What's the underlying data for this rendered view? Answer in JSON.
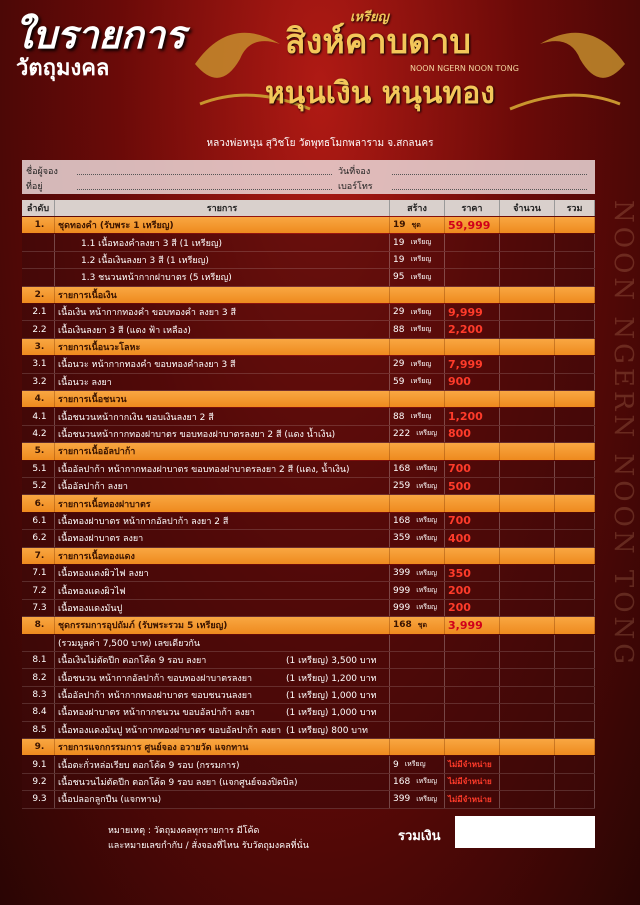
{
  "header": {
    "title": "ใบรายการ",
    "subtitle": "วัตถุมงคล",
    "logo_top": "เหรียญ",
    "logo_main": "สิงห์คาบดาบ",
    "logo_en": "NOON NGERN  NOON TONG",
    "logo_bottom": "หนุนเงิน หนุนทอง",
    "temple": "หลวงพ่อหนุน สุวิชโย วัดพุทธโมกพลาราม จ.สกลนคร",
    "side": "NOON NGERN NOON TONG"
  },
  "form": {
    "name": "ชื่อผู้จอง",
    "address": "ที่อยู่",
    "date": "วันที่จอง",
    "phone": "เบอร์โทร"
  },
  "table": {
    "headers": [
      "ลำดับ",
      "รายการ",
      "สร้าง",
      "ราคา",
      "จำนวน",
      "รวม"
    ],
    "rows": [
      {
        "kind": "section",
        "no": "1.",
        "item": "ชุดทองคำ (รับพระ 1 เหรียญ)",
        "qty": 19,
        "unit": "ชุด",
        "price": "59,999"
      },
      {
        "kind": "sub",
        "item": "1.1  เนื้อทองคำลงยา 3 สี   (1 เหรียญ)",
        "qty": 19,
        "unit": "เหรียญ"
      },
      {
        "kind": "sub",
        "item": "1.2  เนื้อเงินลงยา 3 สี   (1 เหรียญ)",
        "qty": 19,
        "unit": "เหรียญ"
      },
      {
        "kind": "sub",
        "item": "1.3  ชนวนหน้ากากฝาบาตร   (5 เหรียญ)",
        "qty": 95,
        "unit": "เหรียญ"
      },
      {
        "kind": "section",
        "no": "2.",
        "item": "รายการเนื้อเงิน"
      },
      {
        "kind": "item",
        "no": "2.1",
        "item": "เนื้อเงิน หน้ากากทองคำ ขอบทองคำ ลงยา 3 สี",
        "qty": 29,
        "unit": "เหรียญ",
        "price": "9,999"
      },
      {
        "kind": "item",
        "no": "2.2",
        "item": "เนื้อเงินลงยา 3 สี (แดง ฟ้า เหลือง)",
        "qty": 88,
        "unit": "เหรียญ",
        "price": "2,200"
      },
      {
        "kind": "section",
        "no": "3.",
        "item": "รายการเนื้อนวะโลหะ"
      },
      {
        "kind": "item",
        "no": "3.1",
        "item": "เนื้อนวะ หน้ากากทองคำ ขอบทองคำลงยา 3 สี",
        "qty": 29,
        "unit": "เหรียญ",
        "price": "7,999"
      },
      {
        "kind": "item",
        "no": "3.2",
        "item": "เนื้อนวะ ลงยา",
        "qty": 59,
        "unit": "เหรียญ",
        "price": "900"
      },
      {
        "kind": "section",
        "no": "4.",
        "item": "รายการเนื้อชนวน"
      },
      {
        "kind": "item",
        "no": "4.1",
        "item": "เนื้อชนวนหน้ากากเงิน ขอบเงินลงยา 2 สี",
        "qty": 88,
        "unit": "เหรียญ",
        "price": "1,200"
      },
      {
        "kind": "item",
        "no": "4.2",
        "item": "เนื้อชนวนหน้ากากทองฝาบาตร ขอบทองฝาบาตรลงยา 2 สี (แดง น้ำเงิน)",
        "qty": 222,
        "unit": "เหรียญ",
        "price": "800"
      },
      {
        "kind": "section",
        "no": "5.",
        "item": "รายการเนื้ออัลปาก้า"
      },
      {
        "kind": "item",
        "no": "5.1",
        "item": "เนื้ออัลปาก้า หน้ากากทองฝาบาตร ขอบทองฝาบาตรลงยา 2 สี (แดง, น้ำเงิน)",
        "qty": 168,
        "unit": "เหรียญ",
        "price": "700"
      },
      {
        "kind": "item",
        "no": "5.2",
        "item": "เนื้ออัลปาก้า ลงยา",
        "qty": 259,
        "unit": "เหรียญ",
        "price": "500"
      },
      {
        "kind": "section",
        "no": "6.",
        "item": "รายการเนื้อทองฝาบาตร"
      },
      {
        "kind": "item",
        "no": "6.1",
        "item": "เนื้อทองฝาบาตร หน้ากากอัลปาก้า ลงยา 2 สี",
        "qty": 168,
        "unit": "เหรียญ",
        "price": "700"
      },
      {
        "kind": "item",
        "no": "6.2",
        "item": "เนื้อทองฝาบาตร ลงยา",
        "qty": 359,
        "unit": "เหรียญ",
        "price": "400"
      },
      {
        "kind": "section",
        "no": "7.",
        "item": "รายการเนื้อทองแดง"
      },
      {
        "kind": "item",
        "no": "7.1",
        "item": "เนื้อทองแดงผิวไฟ ลงยา",
        "qty": 399,
        "unit": "เหรียญ",
        "price": "350"
      },
      {
        "kind": "item",
        "no": "7.2",
        "item": "เนื้อทองแดงผิวไฟ",
        "qty": 999,
        "unit": "เหรียญ",
        "price": "200"
      },
      {
        "kind": "item",
        "no": "7.3",
        "item": "เนื้อทองแดงมันปู",
        "qty": 999,
        "unit": "เหรียญ",
        "price": "200"
      },
      {
        "kind": "section",
        "no": "8.",
        "item": "ชุดกรรมการอุปถัมภ์ (รับพระรวม 5 เหรียญ)",
        "qty": 168,
        "unit": "ชุด",
        "price": "3,999"
      },
      {
        "kind": "note",
        "item": "(รวมมูลค่า 7,500 บาท) เลขเดียวกัน"
      },
      {
        "kind": "item",
        "no": "8.1",
        "item": "เนื้อเงินไม่ตัดปีก ตอกโค้ด 9 รอบ ลงยา",
        "detail": "(1 เหรียญ) 3,500 บาท"
      },
      {
        "kind": "item",
        "no": "8.2",
        "item": "เนื้อชนวน หน้ากากอัลปาก้า ขอบทองฝาบาตรลงยา",
        "detail": "(1 เหรียญ) 1,200 บาท"
      },
      {
        "kind": "item",
        "no": "8.3",
        "item": "เนื้ออัลปาก้า หน้ากากทองฝาบาตร ขอบชนวนลงยา",
        "detail": "(1 เหรียญ) 1,000 บาท"
      },
      {
        "kind": "item",
        "no": "8.4",
        "item": "เนื้อทองฝาบาตร หน้ากากชนวน ขอบอัลปาก้า ลงยา",
        "detail": "(1 เหรียญ) 1,000 บาท"
      },
      {
        "kind": "item",
        "no": "8.5",
        "item": "เนื้อทองแดงมันปู หน้ากากทองฝาบาตร ขอบอัลปาก้า ลงยา",
        "detail": "(1 เหรียญ) 800 บาท"
      },
      {
        "kind": "section",
        "no": "9.",
        "item": "รายการแจกกรรมการ ศูนย์จอง อวายวัด แจกทาน"
      },
      {
        "kind": "item",
        "no": "9.1",
        "item": "เนื้อตะกั่วหล่อเรียบ ตอกโค้ด 9 รอบ (กรรมการ)",
        "qty": 9,
        "unit": "เหรียญ",
        "price": "ไม่มีจำหน่าย"
      },
      {
        "kind": "item",
        "no": "9.2",
        "item": "เนื้อชนวนไม่ตัดปีก ตอกโค้ด 9 รอบ ลงยา (แจกศูนย์จองปิดบิล)",
        "qty": 168,
        "unit": "เหรียญ",
        "price": "ไม่มีจำหน่าย"
      },
      {
        "kind": "item",
        "no": "9.3",
        "item": "เนื้อปลอกลูกปืน (แจกทาน)",
        "qty": 399,
        "unit": "เหรียญ",
        "price": "ไม่มีจำหน่าย"
      }
    ]
  },
  "footer": {
    "note1": "หมายเหตุ : วัตถุมงคลทุกรายการ มีโค้ด",
    "note2": "และหมายเลขกำกับ / สั่งจองที่ไหน รับวัตถุมงคลที่นั่น",
    "total": "รวมเงิน"
  }
}
